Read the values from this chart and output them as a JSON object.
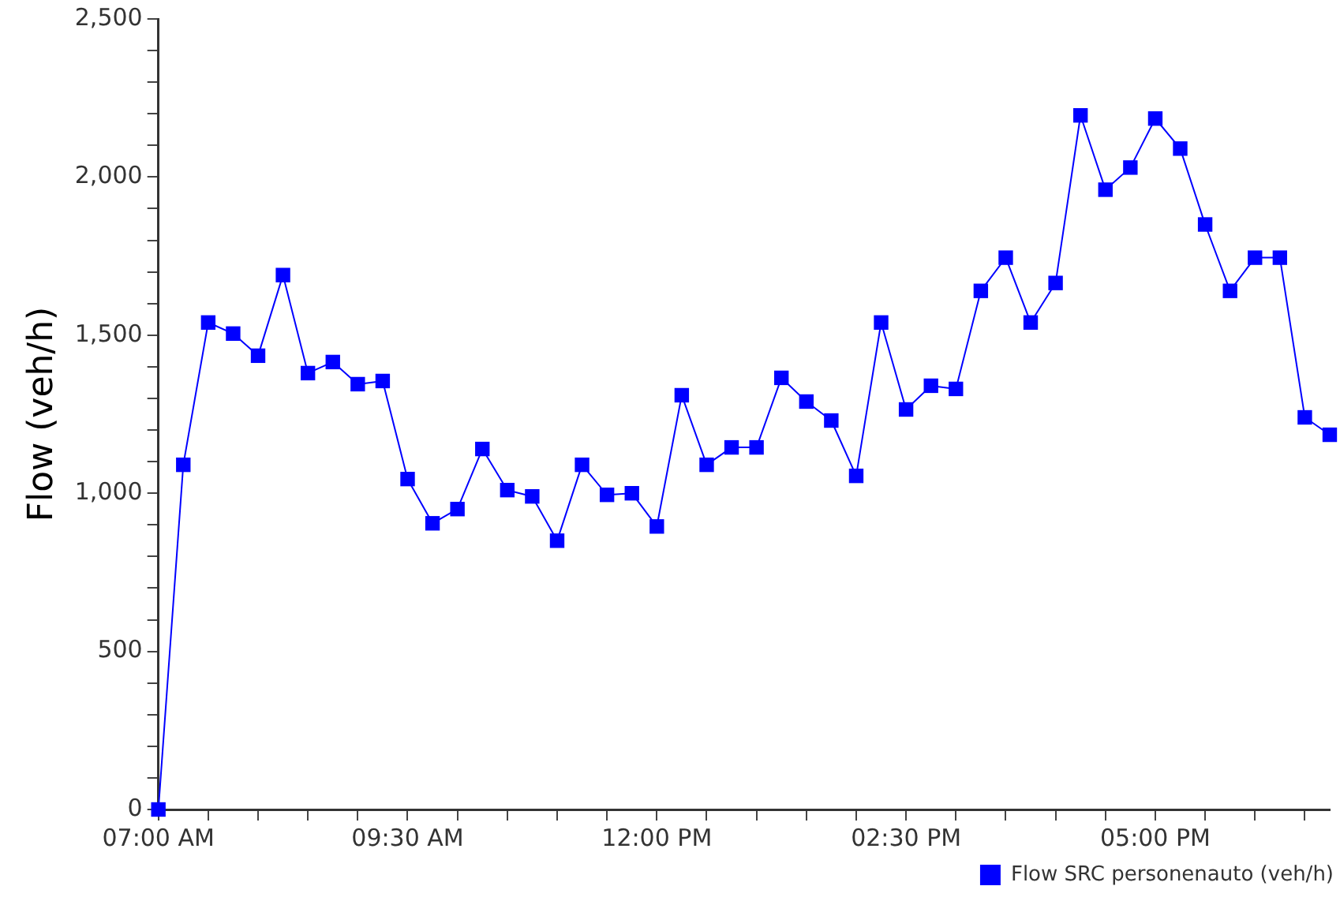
{
  "chart_data": {
    "type": "line",
    "ylabel": "Flow (veh/h)",
    "x": [
      7,
      7.25,
      7.5,
      7.75,
      8,
      8.25,
      8.5,
      8.75,
      9,
      9.25,
      9.5,
      9.75,
      10,
      10.25,
      10.5,
      10.75,
      11,
      11.25,
      11.5,
      11.75,
      12,
      12.25,
      12.5,
      12.75,
      13,
      13.25,
      13.5,
      13.75,
      14,
      14.25,
      14.5,
      14.75,
      15,
      15.25,
      15.5,
      15.75,
      16,
      16.25,
      16.5,
      16.75,
      17,
      17.25,
      17.5,
      17.75,
      18,
      18.25,
      18.5,
      18.75
    ],
    "series": [
      {
        "name": "Flow SRC personenauto (veh/h)",
        "color": "#0000ff",
        "values": [
          0,
          1090,
          1540,
          1505,
          1435,
          1690,
          1380,
          1415,
          1345,
          1355,
          1045,
          905,
          950,
          1140,
          1010,
          990,
          850,
          1090,
          995,
          1000,
          895,
          1310,
          1090,
          1145,
          1145,
          1365,
          1290,
          1230,
          1055,
          1540,
          1265,
          1340,
          1330,
          1640,
          1745,
          1540,
          1665,
          2195,
          1960,
          2030,
          2185,
          2090,
          1850,
          1640,
          1745,
          1745,
          1240,
          1185
        ]
      }
    ],
    "xlim": [
      7,
      18.75
    ],
    "xticks": [
      {
        "value": 7,
        "label": "07:00 AM"
      },
      {
        "value": 7.5,
        "label": null
      },
      {
        "value": 8,
        "label": null
      },
      {
        "value": 8.5,
        "label": null
      },
      {
        "value": 9,
        "label": null
      },
      {
        "value": 9.5,
        "label": "09:30 AM"
      },
      {
        "value": 10,
        "label": null
      },
      {
        "value": 10.5,
        "label": null
      },
      {
        "value": 11,
        "label": null
      },
      {
        "value": 11.5,
        "label": null
      },
      {
        "value": 12,
        "label": "12:00 PM"
      },
      {
        "value": 12.5,
        "label": null
      },
      {
        "value": 13,
        "label": null
      },
      {
        "value": 13.5,
        "label": null
      },
      {
        "value": 14,
        "label": null
      },
      {
        "value": 14.5,
        "label": "02:30 PM"
      },
      {
        "value": 15,
        "label": null
      },
      {
        "value": 15.5,
        "label": null
      },
      {
        "value": 16,
        "label": null
      },
      {
        "value": 16.5,
        "label": null
      },
      {
        "value": 17,
        "label": "05:00 PM"
      },
      {
        "value": 17.5,
        "label": null
      },
      {
        "value": 18,
        "label": null
      },
      {
        "value": 18.5,
        "label": null
      }
    ],
    "ylim": [
      0,
      2500
    ],
    "yticks": [
      0,
      {
        "value": 100,
        "label": null
      },
      {
        "value": 200,
        "label": null
      },
      {
        "value": 300,
        "label": null
      },
      {
        "value": 400,
        "label": null
      },
      500,
      {
        "value": 600,
        "label": null
      },
      {
        "value": 700,
        "label": null
      },
      {
        "value": 800,
        "label": null
      },
      {
        "value": 900,
        "label": null
      },
      {
        "value": 1000,
        "label": "1,000"
      },
      {
        "value": 1100,
        "label": null
      },
      {
        "value": 1200,
        "label": null
      },
      {
        "value": 1300,
        "label": null
      },
      {
        "value": 1400,
        "label": null
      },
      {
        "value": 1500,
        "label": "1,500"
      },
      {
        "value": 1600,
        "label": null
      },
      {
        "value": 1700,
        "label": null
      },
      {
        "value": 1800,
        "label": null
      },
      {
        "value": 1900,
        "label": null
      },
      {
        "value": 2000,
        "label": "2,000"
      },
      {
        "value": 2100,
        "label": null
      },
      {
        "value": 2200,
        "label": null
      },
      {
        "value": 2300,
        "label": null
      },
      {
        "value": 2400,
        "label": null
      },
      {
        "value": 2500,
        "label": "2,500"
      }
    ],
    "grid": false,
    "legend": "bottom",
    "marker": "square",
    "line_style": "solid"
  }
}
